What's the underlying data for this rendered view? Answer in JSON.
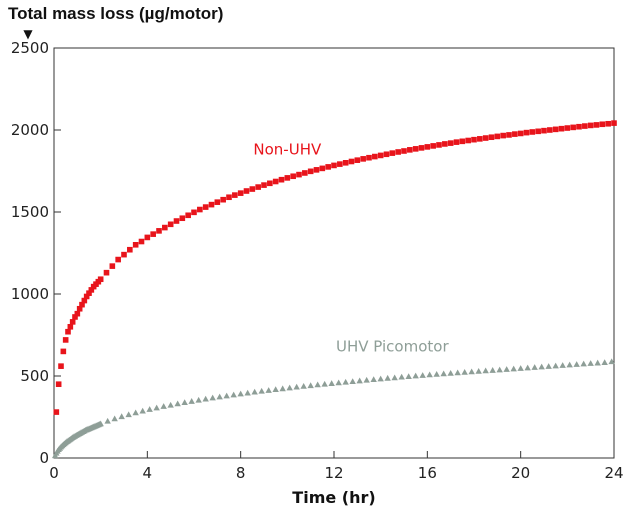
{
  "chart_data": {
    "type": "scatter",
    "ylabel": "Total mass loss (µg/motor)",
    "xlabel": "Time (hr)",
    "xlim": [
      0,
      24
    ],
    "ylim": [
      0,
      2500
    ],
    "xticks": [
      0,
      4,
      8,
      12,
      16,
      20,
      24
    ],
    "yticks": [
      0,
      500,
      1000,
      1500,
      2000,
      2500
    ],
    "grid": false,
    "colors": {
      "non_uhv": "#e8141b",
      "uhv": "#8e9e97"
    },
    "series": [
      {
        "name": "Non-UHV",
        "marker": "square",
        "x": [
          0.1,
          0.2,
          0.3,
          0.4,
          0.5,
          0.6,
          0.7,
          0.8,
          0.9,
          1.0,
          1.1,
          1.2,
          1.3,
          1.4,
          1.5,
          1.6,
          1.7,
          1.8,
          1.9,
          2.0,
          2.25,
          2.5,
          2.75,
          3.0,
          3.25,
          3.5,
          3.75,
          4.0,
          4.25,
          4.5,
          4.75,
          5.0,
          5.25,
          5.5,
          5.75,
          6.0,
          6.25,
          6.5,
          6.75,
          7.0,
          7.25,
          7.5,
          7.75,
          8.0,
          8.25,
          8.5,
          8.75,
          9.0,
          9.25,
          9.5,
          9.75,
          10.0,
          10.25,
          10.5,
          10.75,
          11.0,
          11.25,
          11.5,
          11.75,
          12.0,
          12.25,
          12.5,
          12.75,
          13.0,
          13.25,
          13.5,
          13.75,
          14.0,
          14.25,
          14.5,
          14.75,
          15.0,
          15.25,
          15.5,
          15.75,
          16.0,
          16.25,
          16.5,
          16.75,
          17.0,
          17.25,
          17.5,
          17.75,
          18.0,
          18.25,
          18.5,
          18.75,
          19.0,
          19.25,
          19.5,
          19.75,
          20.0,
          20.25,
          20.5,
          20.75,
          21.0,
          21.25,
          21.5,
          21.75,
          22.0,
          22.25,
          22.5,
          22.75,
          23.0,
          23.25,
          23.5,
          23.75,
          24.0
        ],
        "y": [
          280,
          450,
          560,
          650,
          720,
          770,
          800,
          830,
          860,
          880,
          910,
          935,
          960,
          985,
          1005,
          1025,
          1045,
          1060,
          1075,
          1090,
          1130,
          1170,
          1210,
          1240,
          1270,
          1300,
          1320,
          1345,
          1365,
          1385,
          1405,
          1425,
          1445,
          1462,
          1480,
          1498,
          1515,
          1530,
          1545,
          1560,
          1575,
          1590,
          1603,
          1615,
          1628,
          1640,
          1652,
          1664,
          1675,
          1686,
          1697,
          1708,
          1718,
          1728,
          1738,
          1748,
          1757,
          1766,
          1775,
          1784,
          1792,
          1800,
          1808,
          1816,
          1824,
          1831,
          1838,
          1845,
          1852,
          1859,
          1866,
          1872,
          1879,
          1885,
          1891,
          1897,
          1903,
          1909,
          1915,
          1920,
          1926,
          1931,
          1936,
          1941,
          1946,
          1951,
          1956,
          1961,
          1966,
          1970,
          1975,
          1979,
          1984,
          1988,
          1992,
          1996,
          2000,
          2004,
          2008,
          2012,
          2016,
          2020,
          2024,
          2028,
          2031,
          2035,
          2038,
          2042
        ]
      },
      {
        "name": "UHV Picomotor",
        "marker": "triangle",
        "x": [
          0.05,
          0.1,
          0.15,
          0.2,
          0.25,
          0.3,
          0.35,
          0.4,
          0.45,
          0.5,
          0.55,
          0.6,
          0.65,
          0.7,
          0.75,
          0.8,
          0.85,
          0.9,
          0.95,
          1.0,
          1.05,
          1.1,
          1.15,
          1.2,
          1.25,
          1.3,
          1.35,
          1.4,
          1.45,
          1.5,
          1.55,
          1.6,
          1.65,
          1.7,
          1.75,
          1.8,
          1.85,
          1.9,
          1.95,
          2.0,
          2.3,
          2.6,
          2.9,
          3.2,
          3.5,
          3.8,
          4.1,
          4.4,
          4.7,
          5.0,
          5.3,
          5.6,
          5.9,
          6.2,
          6.5,
          6.8,
          7.1,
          7.4,
          7.7,
          8.0,
          8.3,
          8.6,
          8.9,
          9.2,
          9.5,
          9.8,
          10.1,
          10.4,
          10.7,
          11.0,
          11.3,
          11.6,
          11.9,
          12.2,
          12.5,
          12.8,
          13.1,
          13.4,
          13.7,
          14.0,
          14.3,
          14.6,
          14.9,
          15.2,
          15.5,
          15.8,
          16.1,
          16.4,
          16.7,
          17.0,
          17.3,
          17.6,
          17.9,
          18.2,
          18.5,
          18.8,
          19.1,
          19.4,
          19.7,
          20.0,
          20.3,
          20.6,
          20.9,
          21.2,
          21.5,
          21.8,
          22.1,
          22.4,
          22.7,
          23.0,
          23.3,
          23.6,
          23.9
        ],
        "y": [
          15,
          30,
          42,
          52,
          60,
          68,
          75,
          82,
          88,
          94,
          100,
          105,
          110,
          115,
          120,
          125,
          130,
          134,
          138,
          142,
          146,
          150,
          154,
          158,
          162,
          166,
          170,
          173,
          176,
          179,
          182,
          185,
          188,
          191,
          194,
          197,
          200,
          203,
          206,
          209,
          225,
          240,
          253,
          265,
          276,
          287,
          297,
          306,
          315,
          323,
          331,
          339,
          346,
          353,
          360,
          367,
          373,
          379,
          385,
          391,
          397,
          403,
          408,
          413,
          418,
          423,
          428,
          433,
          438,
          442,
          447,
          451,
          455,
          459,
          463,
          467,
          471,
          475,
          479,
          483,
          487,
          490,
          494,
          497,
          501,
          504,
          508,
          511,
          514,
          517,
          520,
          523,
          526,
          529,
          532,
          535,
          538,
          541,
          544,
          547,
          550,
          553,
          556,
          559,
          562,
          565,
          568,
          571,
          574,
          577,
          580,
          583,
          588
        ]
      }
    ],
    "annotations": [
      {
        "text": "Non-UHV",
        "x": 10.0,
        "y": 1850,
        "series": 0
      },
      {
        "text": "UHV Picomotor",
        "x": 14.5,
        "y": 650,
        "series": 1
      }
    ],
    "axis_marker": "▼"
  }
}
